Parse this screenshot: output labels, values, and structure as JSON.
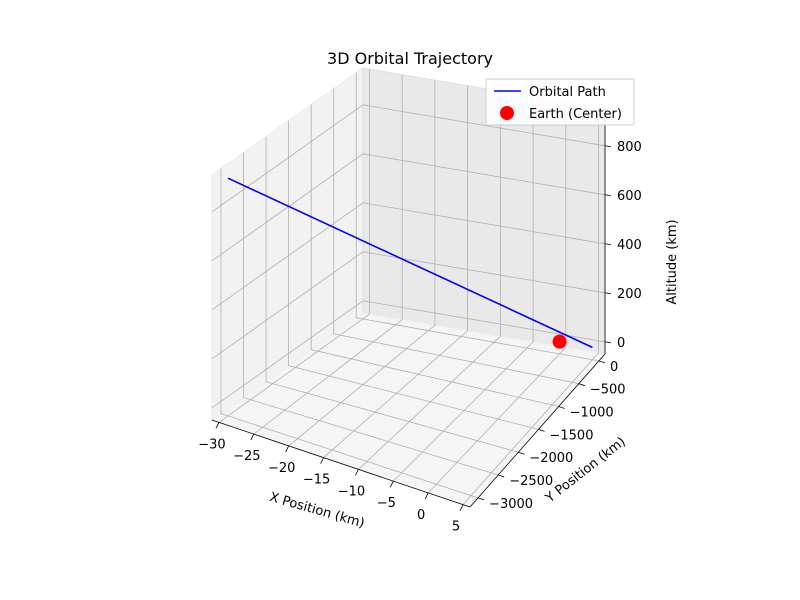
{
  "chart_data": {
    "type": "line",
    "projection": "3d",
    "title": "3D Orbital Trajectory",
    "xlabel": "X Position (km)",
    "ylabel": "Y Position (km)",
    "zlabel": "Altitude (km)",
    "xlim": [
      -31,
      6
    ],
    "ylim": [
      -3200,
      150
    ],
    "zlim": [
      -50,
      950
    ],
    "x_ticks": [
      -30,
      -25,
      -20,
      -15,
      -10,
      -5,
      0,
      5
    ],
    "y_ticks": [
      0,
      -500,
      -1000,
      -1500,
      -2000,
      -2500,
      -3000
    ],
    "z_ticks": [
      0,
      200,
      400,
      600,
      800
    ],
    "grid": true,
    "legend_position": "top-right",
    "series": [
      {
        "name": "Orbital Path",
        "kind": "line",
        "color": "#0000ff",
        "points": [
          {
            "x": -30,
            "y": -3000,
            "z": 920
          },
          {
            "x": 5,
            "y": 0,
            "z": 0
          }
        ]
      },
      {
        "name": "Earth (Center)",
        "kind": "scatter",
        "color": "#ff0000",
        "points": [
          {
            "x": 0,
            "y": 0,
            "z": 0
          }
        ]
      }
    ]
  }
}
